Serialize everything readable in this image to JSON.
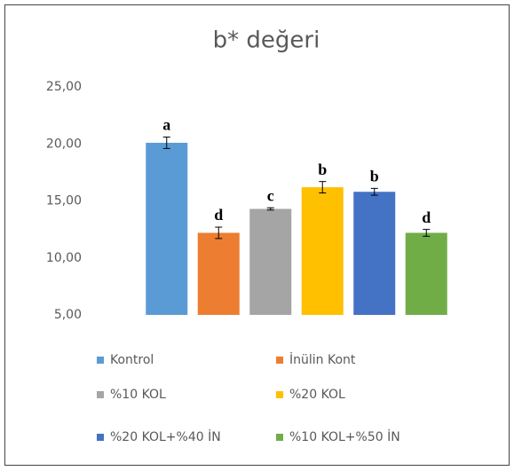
{
  "chart_data": {
    "type": "bar",
    "title": "b* değeri",
    "ylim": [
      5,
      25
    ],
    "yticks": [
      {
        "value": 5,
        "label": "5,00"
      },
      {
        "value": 10,
        "label": "10,00"
      },
      {
        "value": 15,
        "label": "15,00"
      },
      {
        "value": 20,
        "label": "20,00"
      },
      {
        "value": 25,
        "label": "25,00"
      }
    ],
    "series": [
      {
        "name": "Kontrol",
        "color": "#5b9bd5",
        "values": [
          20.1
        ],
        "errors": [
          0.5
        ],
        "annotation": "a"
      },
      {
        "name": "İnülin Kont",
        "color": "#ed7d31",
        "values": [
          12.2
        ],
        "errors": [
          0.5
        ],
        "annotation": "d"
      },
      {
        "name": "%10 KOL",
        "color": "#a5a5a5",
        "values": [
          14.3
        ],
        "errors": [
          0.1
        ],
        "annotation": "c"
      },
      {
        "name": "%20 KOL",
        "color": "#ffc000",
        "values": [
          16.2
        ],
        "errors": [
          0.5
        ],
        "annotation": "b"
      },
      {
        "name": "%20 KOL+%40 İN",
        "color": "#4472c4",
        "values": [
          15.8
        ],
        "errors": [
          0.3
        ],
        "annotation": "b"
      },
      {
        "name": "%10 KOL+%50 İN",
        "color": "#70ad47",
        "values": [
          12.2
        ],
        "errors": [
          0.3
        ],
        "annotation": "d"
      }
    ]
  }
}
